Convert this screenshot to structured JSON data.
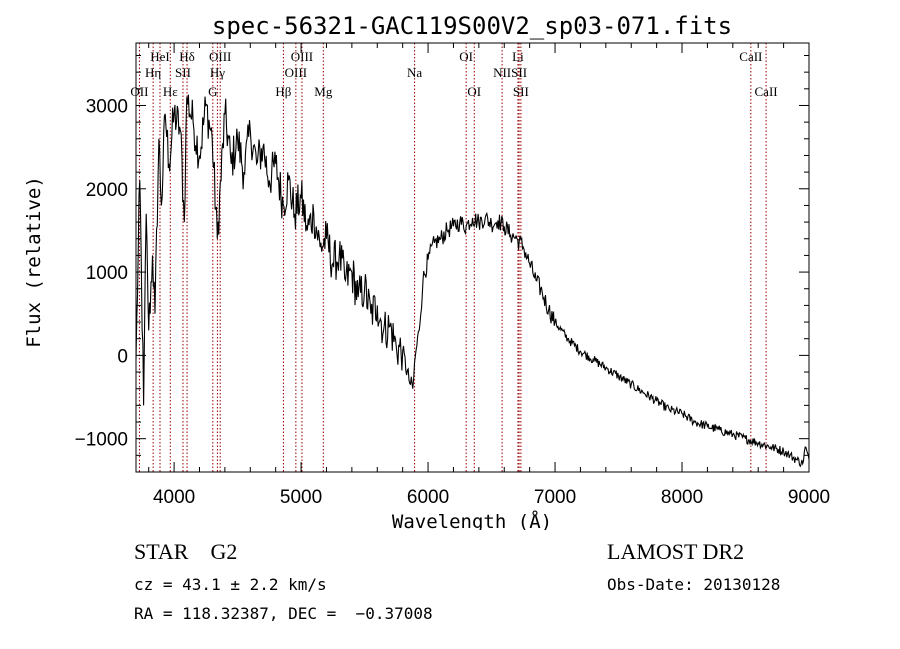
{
  "chart_data": {
    "type": "line",
    "title": "spec-56321-GAC119S00V2_sp03-071.fits",
    "xlabel": "Wavelength (Å)",
    "ylabel": "Flux (relative)",
    "xlim": [
      3700,
      9000
    ],
    "ylim": [
      -1400,
      3750
    ],
    "x_ticks": [
      4000,
      5000,
      6000,
      7000,
      8000,
      9000
    ],
    "y_ticks": [
      -1000,
      0,
      1000,
      2000,
      3000
    ],
    "x_tick_labels": [
      "4000",
      "5000",
      "6000",
      "7000",
      "8000",
      "9000"
    ],
    "y_tick_labels": [
      "−1000",
      "0",
      "1000",
      "2000",
      "3000"
    ],
    "grid": false,
    "series": [
      {
        "color": "#000000",
        "x": [
          3700,
          3730,
          3760,
          3780,
          3800,
          3830,
          3850,
          3880,
          3900,
          3930,
          3960,
          4000,
          4050,
          4080,
          4100,
          4150,
          4200,
          4250,
          4300,
          4340,
          4400,
          4450,
          4500,
          4550,
          4600,
          4650,
          4700,
          4750,
          4800,
          4860,
          4900,
          4950,
          5000,
          5050,
          5100,
          5150,
          5200,
          5250,
          5300,
          5350,
          5400,
          5450,
          5500,
          5550,
          5600,
          5650,
          5700,
          5750,
          5800,
          5850,
          5880,
          5900,
          5930,
          5960,
          6000,
          6050,
          6100,
          6150,
          6200,
          6250,
          6300,
          6350,
          6400,
          6450,
          6500,
          6550,
          6600,
          6650,
          6700,
          6750,
          6800,
          6850,
          6900,
          6950,
          7000,
          7100,
          7200,
          7300,
          7400,
          7500,
          7600,
          7700,
          7800,
          7900,
          8000,
          8100,
          8200,
          8300,
          8400,
          8500,
          8600,
          8700,
          8800,
          8850,
          8900,
          8950,
          8970,
          9000
        ],
        "y": [
          -50,
          2100,
          -600,
          1700,
          300,
          1200,
          500,
          2600,
          1800,
          2900,
          2300,
          2900,
          2700,
          1600,
          3100,
          2800,
          2400,
          3000,
          2600,
          1400,
          2900,
          2300,
          2600,
          2200,
          2700,
          2300,
          2500,
          2100,
          2300,
          1800,
          2100,
          1700,
          1900,
          1500,
          1700,
          1300,
          1400,
          1100,
          1200,
          900,
          1000,
          700,
          800,
          500,
          600,
          300,
          350,
          100,
          50,
          -300,
          -400,
          0,
          300,
          900,
          1150,
          1350,
          1400,
          1500,
          1550,
          1600,
          1550,
          1650,
          1600,
          1650,
          1580,
          1620,
          1550,
          1450,
          1400,
          1300,
          1100,
          900,
          750,
          550,
          400,
          200,
          50,
          -50,
          -150,
          -250,
          -350,
          -450,
          -550,
          -650,
          -700,
          -800,
          -850,
          -900,
          -950,
          -1000,
          -1050,
          -1100,
          -1150,
          -1200,
          -1250,
          -1300,
          -1100,
          -1250
        ]
      }
    ],
    "line_markers": [
      {
        "name": "OII",
        "wavelength": 3727,
        "row": 3
      },
      {
        "name": "Hη",
        "wavelength": 3835,
        "row": 2
      },
      {
        "name": "HeI",
        "wavelength": 3889,
        "row": 1
      },
      {
        "name": "Hε",
        "wavelength": 3970,
        "row": 3
      },
      {
        "name": "SII",
        "wavelength": 4070,
        "row": 2
      },
      {
        "name": "Hδ",
        "wavelength": 4102,
        "row": 1
      },
      {
        "name": "G",
        "wavelength": 4305,
        "row": 3
      },
      {
        "name": "Hγ",
        "wavelength": 4341,
        "row": 2
      },
      {
        "name": "OIII",
        "wavelength": 4363,
        "row": 1
      },
      {
        "name": "Hβ",
        "wavelength": 4861,
        "row": 3
      },
      {
        "name": "OIII",
        "wavelength": 4959,
        "row": 2
      },
      {
        "name": "OIII",
        "wavelength": 5007,
        "row": 1
      },
      {
        "name": "Mg",
        "wavelength": 5175,
        "row": 3
      },
      {
        "name": "Na",
        "wavelength": 5894,
        "row": 2
      },
      {
        "name": "OI",
        "wavelength": 6300,
        "row": 1
      },
      {
        "name": "OI",
        "wavelength": 6364,
        "row": 3
      },
      {
        "name": "NII",
        "wavelength": 6583,
        "row": 2
      },
      {
        "name": "Li",
        "wavelength": 6708,
        "row": 1
      },
      {
        "name": "SII",
        "wavelength": 6717,
        "row": 2
      },
      {
        "name": "SII",
        "wavelength": 6731,
        "row": 3
      },
      {
        "name": "CaII",
        "wavelength": 8542,
        "row": 1
      },
      {
        "name": "CaII",
        "wavelength": 8662,
        "row": 3
      }
    ],
    "marker_color": "#990000"
  },
  "info": {
    "class_text": "STAR    G2",
    "cz_text": "cz = 43.1 ± 2.2 km/s",
    "radec_text": "RA = 118.32387, DEC =  −0.37008",
    "survey_text": "LAMOST DR2",
    "obsdate_text": "Obs-Date: 20130128"
  }
}
